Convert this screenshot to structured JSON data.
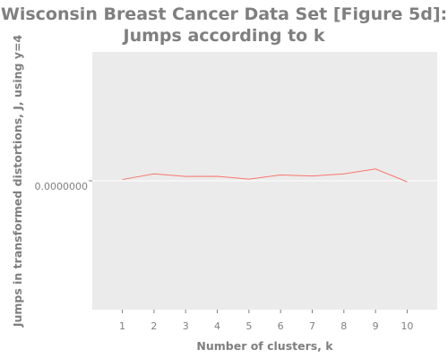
{
  "chart_data": {
    "type": "line",
    "title_line1": "Wisconsin Breast Cancer Data Set [Figure 5d]:",
    "title_line2": "Jumps according to k",
    "xlabel": "Number of clusters, k",
    "ylabel": "Jumps in transformed distortions, J, using y=4",
    "y_tick_label": "0.0000000",
    "xlim": [
      0.05,
      10.95
    ],
    "ylim": [
      -1,
      1
    ],
    "grid": true,
    "legend": "none",
    "colors": {
      "panel": "#ebebeb",
      "grid": "#ffffff",
      "line": "#f8766d",
      "text": "#7f7f7f"
    },
    "series": [
      {
        "x": [
          1,
          2,
          3,
          4,
          5,
          6,
          7,
          8,
          9,
          10
        ],
        "y": [
          0.01,
          0.054,
          0.034,
          0.035,
          0.013,
          0.045,
          0.037,
          0.054,
          0.092,
          -0.008
        ],
        "x_tick_labels": [
          "1",
          "2",
          "3",
          "4",
          "5",
          "6",
          "7",
          "8",
          "9",
          "10"
        ]
      }
    ]
  }
}
